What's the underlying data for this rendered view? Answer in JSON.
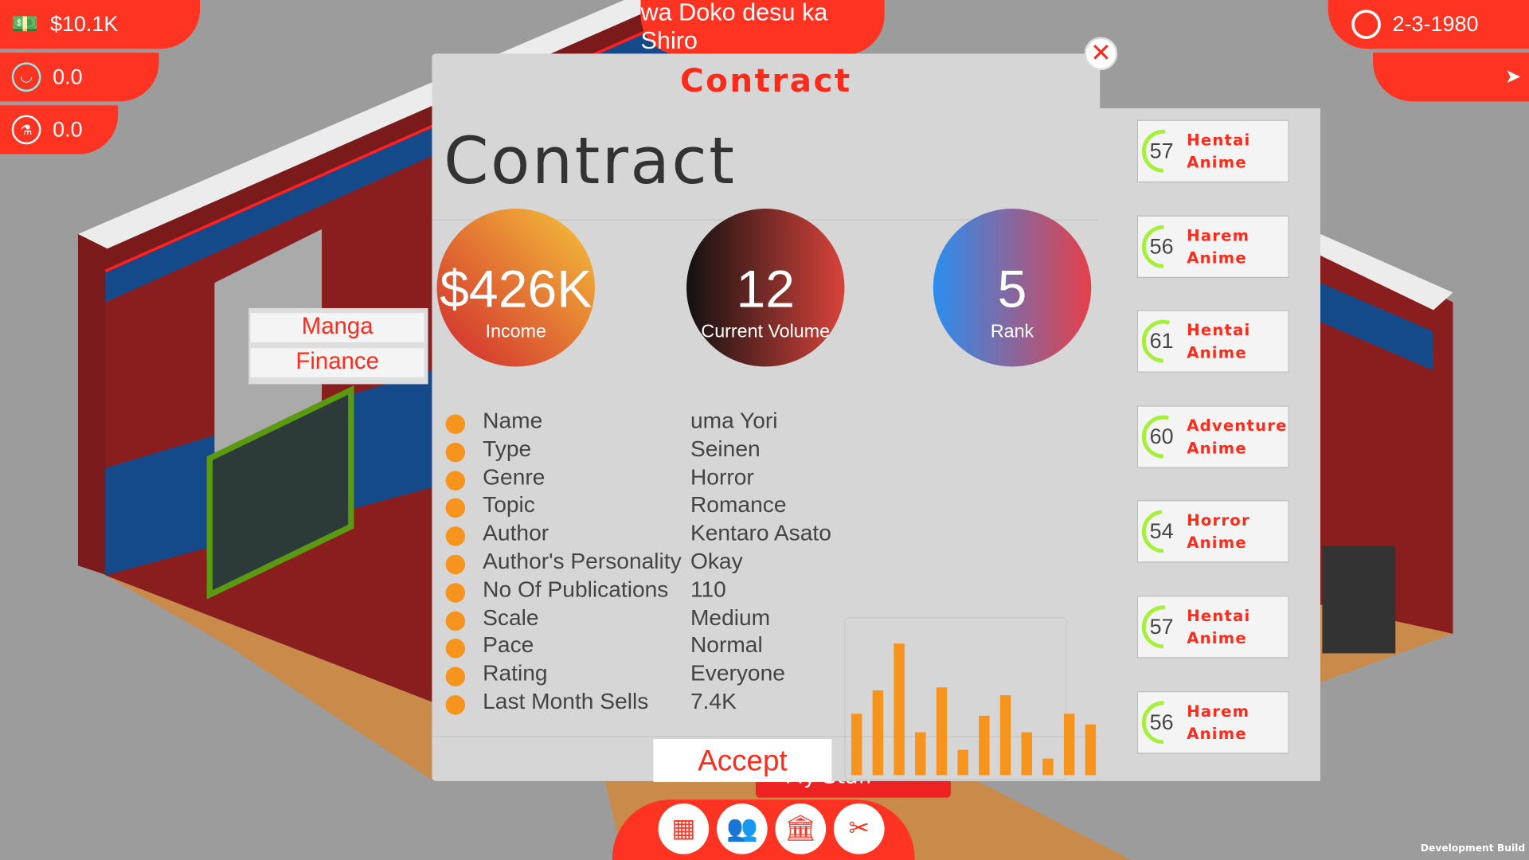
{
  "hud": {
    "money": "$10.1K",
    "happiness": "0.0",
    "research": "0.0",
    "title": "wa Doko desu ka Shiro",
    "date": "2-3-1980"
  },
  "colors": {
    "accent": "#ff3322",
    "bar": "#f7941d",
    "gauge": "#a6ef3a"
  },
  "room_menu": [
    "Manga",
    "Finance"
  ],
  "dialog": {
    "header": "Contract",
    "title": "Contract",
    "stats": [
      {
        "value": "$426K",
        "label": "Income"
      },
      {
        "value": "12",
        "label": "Current Volume"
      },
      {
        "value": "5",
        "label": "Rank"
      }
    ],
    "details": [
      {
        "key": "Name",
        "value": "uma Yori"
      },
      {
        "key": "Type",
        "value": "Seinen"
      },
      {
        "key": "Genre",
        "value": "Horror"
      },
      {
        "key": "Topic",
        "value": "Romance"
      },
      {
        "key": "Author",
        "value": "Kentaro Asato"
      },
      {
        "key": "Author's Personality",
        "value": "Okay"
      },
      {
        "key": "No Of Publications",
        "value": "110"
      },
      {
        "key": "Scale",
        "value": "Medium"
      },
      {
        "key": "Pace",
        "value": "Normal"
      },
      {
        "key": "Rating",
        "value": "Everyone"
      },
      {
        "key": "Last Month Sells",
        "value": "7.4K"
      }
    ],
    "accept_label": "Accept",
    "behind_button_label": "My Staff"
  },
  "chart_data": {
    "type": "bar",
    "values": [
      63,
      87,
      135,
      44,
      90,
      26,
      61,
      82,
      44,
      17,
      63,
      52
    ],
    "grid": false
  },
  "side_list": [
    {
      "score": "57",
      "genre": "Hentai",
      "type": "Anime"
    },
    {
      "score": "56",
      "genre": "Harem",
      "type": "Anime"
    },
    {
      "score": "61",
      "genre": "Hentai",
      "type": "Anime"
    },
    {
      "score": "60",
      "genre": "Adventure",
      "type": "Anime"
    },
    {
      "score": "54",
      "genre": "Horror",
      "type": "Anime"
    },
    {
      "score": "57",
      "genre": "Hentai",
      "type": "Anime"
    },
    {
      "score": "56",
      "genre": "Harem",
      "type": "Anime"
    }
  ],
  "toolbar": [
    "building-icon",
    "staff-icon",
    "bank-icon",
    "tools-icon"
  ],
  "footer": "Development Build"
}
